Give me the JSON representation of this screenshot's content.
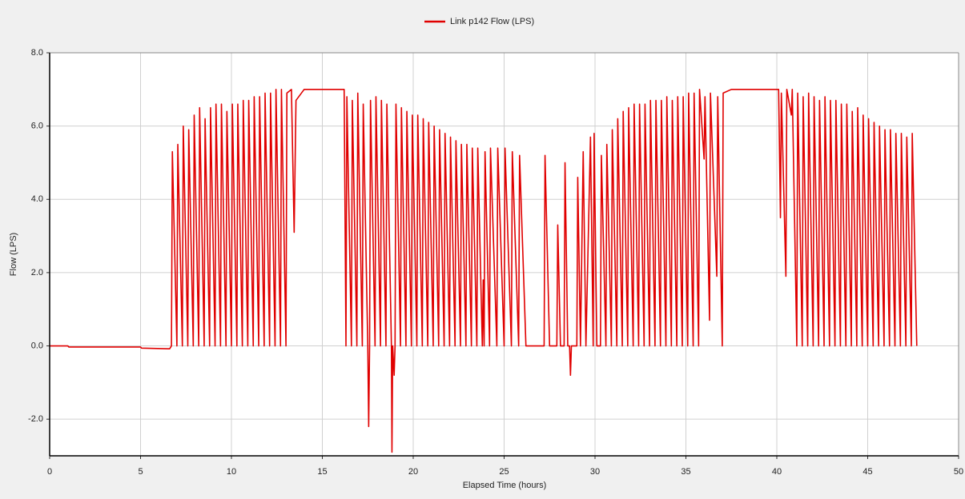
{
  "chart_data": {
    "type": "line",
    "x_label": "Elapsed Time (hours)",
    "y_label": "Flow (LPS)",
    "legend": "top",
    "grid": true,
    "xlim": [
      0,
      50
    ],
    "ylim": [
      -3,
      8
    ],
    "xticks": [
      0,
      5,
      10,
      15,
      20,
      25,
      30,
      35,
      40,
      45,
      50
    ],
    "yticks": [
      {
        "value": -2,
        "label": "-2.0"
      },
      {
        "value": 0,
        "label": "0.0"
      },
      {
        "value": 2,
        "label": "2.0"
      },
      {
        "value": 4,
        "label": "4.0"
      },
      {
        "value": 6,
        "label": "6.0"
      },
      {
        "value": 8,
        "label": "8.0"
      }
    ],
    "x": [
      0,
      1.0,
      1.05,
      5.0,
      5.05,
      6.6,
      6.7,
      6.75,
      7.0,
      7.05,
      7.3,
      7.35,
      7.6,
      7.65,
      7.9,
      7.95,
      8.2,
      8.25,
      8.5,
      8.55,
      8.8,
      8.85,
      9.1,
      9.15,
      9.4,
      9.45,
      9.7,
      9.75,
      10.0,
      10.05,
      10.3,
      10.35,
      10.6,
      10.65,
      10.9,
      10.95,
      11.2,
      11.25,
      11.5,
      11.55,
      11.8,
      11.85,
      12.1,
      12.15,
      12.4,
      12.45,
      12.7,
      12.75,
      13.0,
      13.05,
      13.3,
      13.45,
      13.55,
      14.0,
      16.2,
      16.3,
      16.35,
      16.6,
      16.65,
      16.9,
      16.95,
      17.2,
      17.25,
      17.5,
      17.55,
      17.6,
      17.65,
      17.9,
      17.95,
      18.2,
      18.25,
      18.5,
      18.55,
      18.8,
      18.83,
      18.87,
      18.95,
      19.0,
      19.05,
      19.3,
      19.35,
      19.6,
      19.65,
      19.9,
      19.95,
      20.2,
      20.25,
      20.5,
      20.55,
      20.8,
      20.85,
      21.1,
      21.15,
      21.4,
      21.45,
      21.7,
      21.75,
      22.0,
      22.05,
      22.3,
      22.35,
      22.6,
      22.65,
      22.9,
      22.95,
      23.2,
      23.25,
      23.5,
      23.55,
      23.8,
      23.85,
      23.9,
      23.95,
      24.2,
      24.25,
      24.6,
      24.65,
      25.0,
      25.05,
      25.4,
      25.45,
      25.8,
      25.85,
      26.2,
      27.2,
      27.25,
      27.5,
      27.9,
      27.95,
      28.1,
      28.3,
      28.35,
      28.5,
      28.6,
      28.65,
      28.7,
      29.0,
      29.05,
      29.2,
      29.35,
      29.5,
      29.75,
      29.9,
      29.95,
      30.1,
      30.3,
      30.35,
      30.6,
      30.65,
      30.9,
      30.95,
      31.2,
      31.25,
      31.5,
      31.55,
      31.8,
      31.85,
      32.1,
      32.15,
      32.4,
      32.45,
      32.7,
      32.75,
      33.0,
      33.05,
      33.3,
      33.35,
      33.6,
      33.65,
      33.9,
      33.95,
      34.2,
      34.25,
      34.5,
      34.55,
      34.8,
      34.85,
      35.1,
      35.15,
      35.4,
      35.45,
      35.7,
      35.75,
      36.0,
      36.05,
      36.3,
      36.35,
      36.7,
      36.75,
      37.0,
      37.05,
      37.5,
      40.1,
      40.2,
      40.25,
      40.5,
      40.55,
      40.8,
      40.85,
      41.1,
      41.15,
      41.4,
      41.45,
      41.7,
      41.75,
      42.0,
      42.05,
      42.3,
      42.35,
      42.6,
      42.65,
      42.9,
      42.95,
      43.2,
      43.25,
      43.5,
      43.55,
      43.8,
      43.85,
      44.1,
      44.15,
      44.4,
      44.45,
      44.7,
      44.75,
      45.0,
      45.05,
      45.3,
      45.35,
      45.6,
      45.65,
      45.9,
      45.95,
      46.2,
      46.25,
      46.5,
      46.55,
      46.8,
      46.85,
      47.1,
      47.15,
      47.4,
      47.45,
      47.7
    ],
    "series": [
      {
        "name": "Link p142 Flow (LPS)",
        "color": "#e00000",
        "values": [
          0,
          0,
          -0.03,
          -0.03,
          -0.06,
          -0.08,
          0,
          5.3,
          0,
          5.5,
          0,
          6.0,
          0,
          5.9,
          0,
          6.3,
          0,
          6.5,
          0,
          6.2,
          0,
          6.5,
          0,
          6.6,
          0,
          6.6,
          0,
          6.4,
          0,
          6.6,
          0,
          6.6,
          0,
          6.7,
          0,
          6.7,
          0,
          6.8,
          0,
          6.8,
          0,
          6.9,
          0,
          6.9,
          0,
          7.0,
          0,
          7.0,
          0,
          6.9,
          7.0,
          3.1,
          6.7,
          7.0,
          7.0,
          0,
          6.8,
          0,
          6.7,
          0,
          6.9,
          0,
          6.6,
          0,
          -2.2,
          0,
          6.7,
          0,
          6.8,
          0,
          6.7,
          0,
          6.6,
          0,
          -2.9,
          0,
          -0.8,
          0,
          6.6,
          0,
          6.5,
          0,
          6.4,
          0,
          6.3,
          0,
          6.3,
          0,
          6.2,
          0,
          6.1,
          0,
          6.0,
          0,
          5.9,
          0,
          5.8,
          0,
          5.7,
          0,
          5.6,
          0,
          5.5,
          0,
          5.5,
          0,
          5.4,
          0,
          5.4,
          0,
          1.8,
          0,
          5.3,
          0,
          5.4,
          0,
          5.4,
          0,
          5.4,
          0,
          5.3,
          0,
          5.2,
          0,
          0,
          5.2,
          0,
          0,
          3.3,
          0,
          0,
          5.0,
          0,
          0,
          -0.8,
          0,
          0,
          4.6,
          0,
          5.3,
          0,
          5.7,
          0,
          5.8,
          0,
          0,
          5.2,
          0,
          5.5,
          0,
          5.9,
          0,
          6.2,
          0,
          6.4,
          0,
          6.5,
          0,
          6.6,
          0,
          6.6,
          0,
          6.6,
          0,
          6.7,
          0,
          6.7,
          0,
          6.7,
          0,
          6.8,
          0,
          6.7,
          0,
          6.8,
          0,
          6.8,
          0,
          6.9,
          0,
          6.9,
          0,
          7.0,
          5.1,
          6.8,
          0.7,
          6.9,
          1.9,
          6.8,
          0,
          6.9,
          7.0,
          7.0,
          3.5,
          6.9,
          1.9,
          7.0,
          6.3,
          7.0,
          0,
          6.9,
          0,
          6.8,
          0,
          6.9,
          0,
          6.8,
          0,
          6.7,
          0,
          6.8,
          0,
          6.7,
          0,
          6.7,
          0,
          6.6,
          0,
          6.6,
          0,
          6.4,
          0,
          6.5,
          0,
          6.3,
          0,
          6.2,
          0,
          6.1,
          0,
          6.0,
          0,
          5.9,
          0,
          5.9,
          0,
          5.8,
          0,
          5.8,
          0,
          5.7,
          0,
          5.8,
          0
        ]
      }
    ]
  }
}
